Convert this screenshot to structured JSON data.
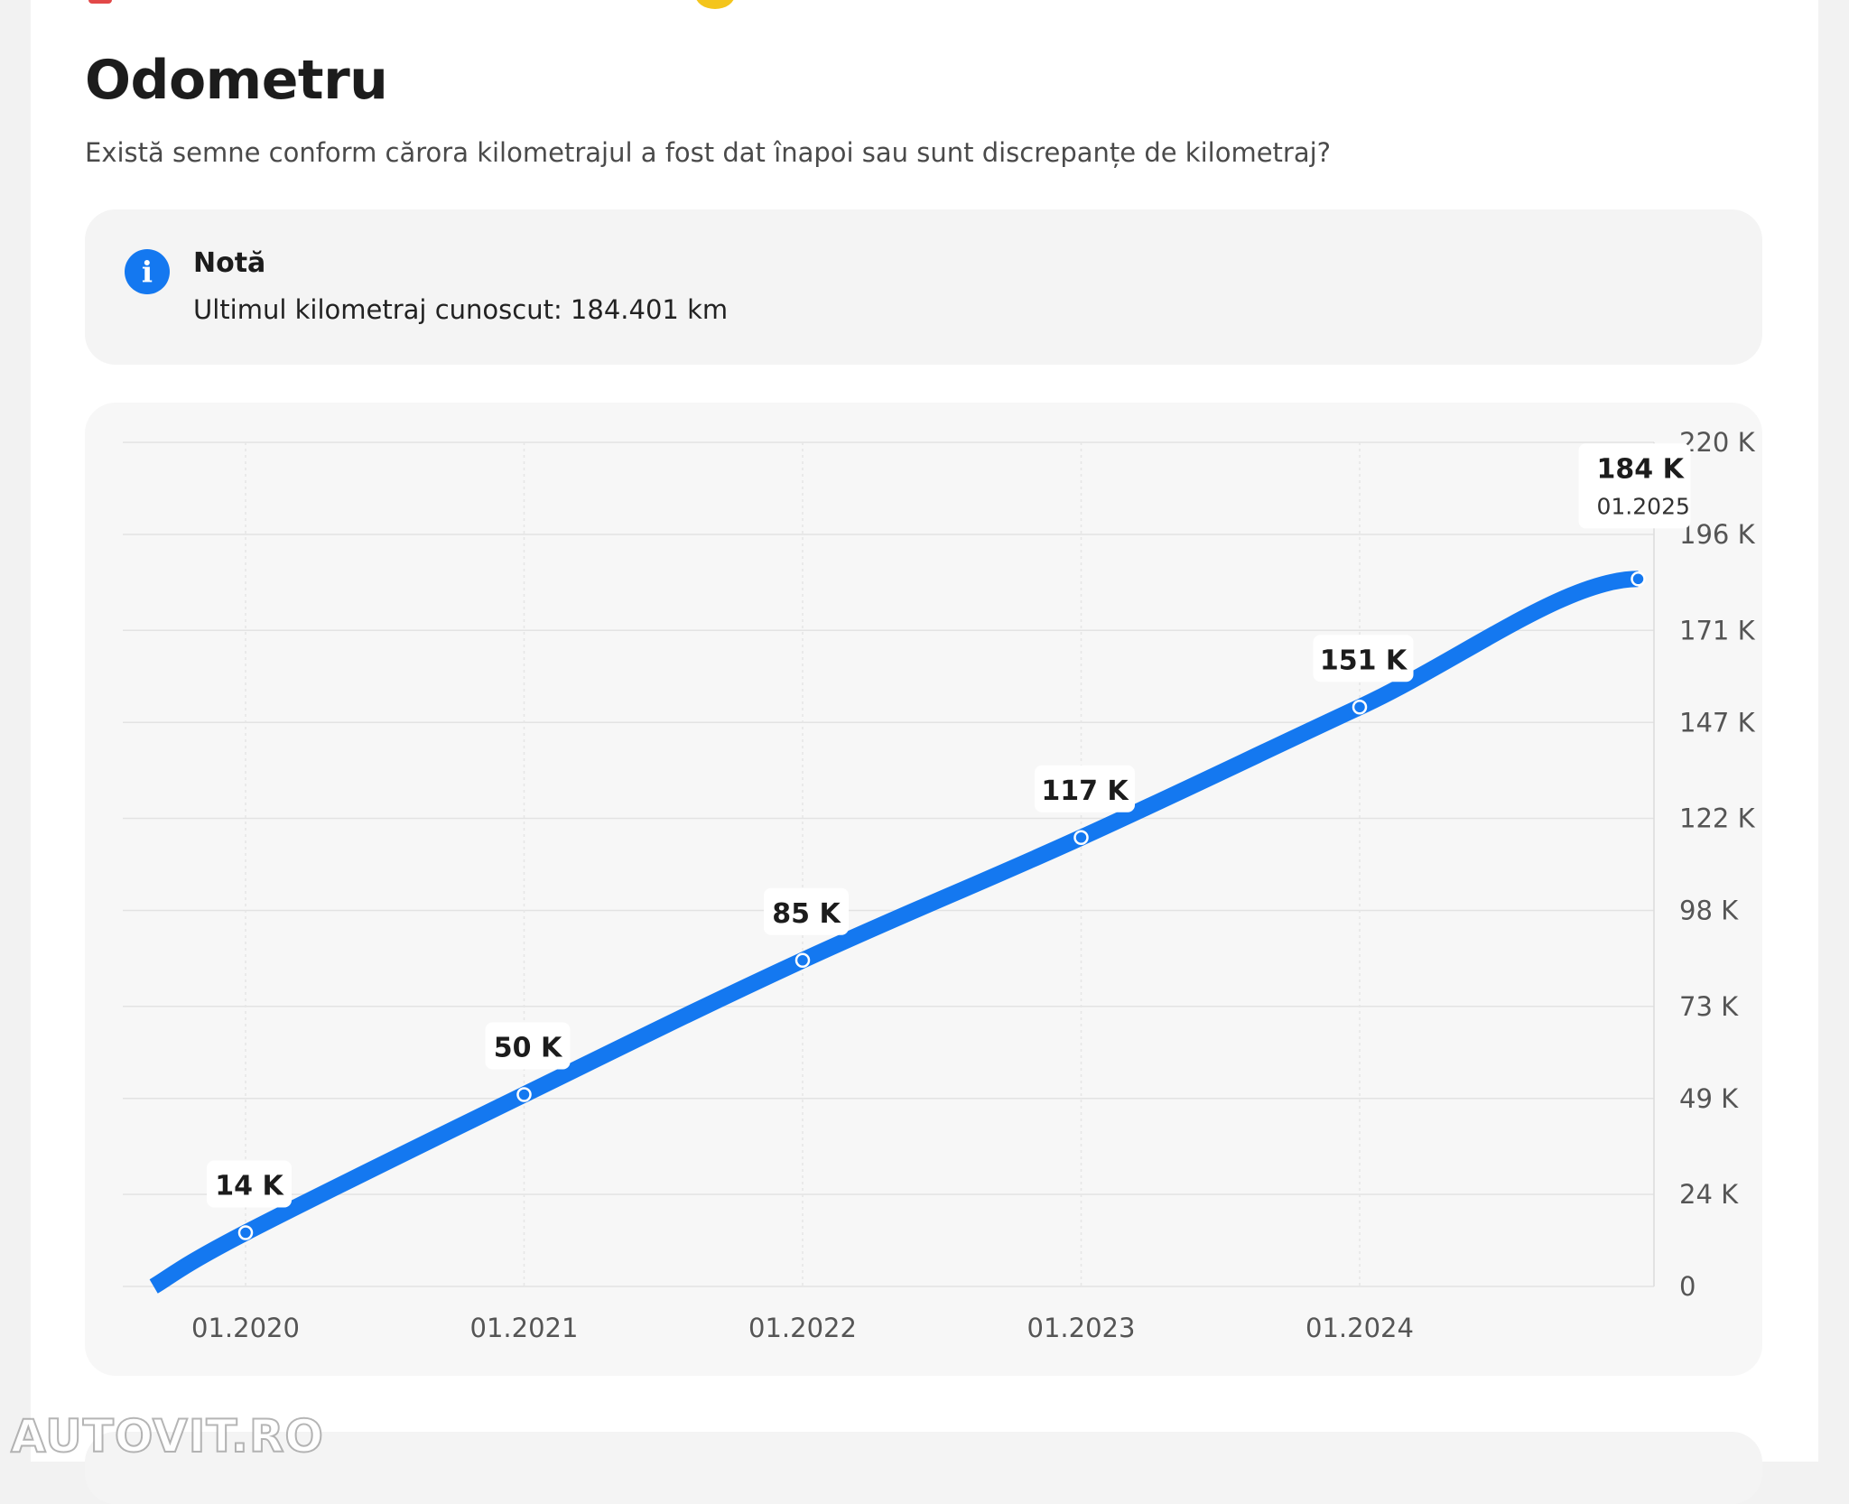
{
  "header": {
    "title": "Odometru",
    "subtitle": "Există semne conform cărora kilometrajul a fost dat înapoi sau sunt discrepanțe de kilometraj?"
  },
  "note": {
    "icon": "info-icon",
    "title": "Notă",
    "text": "Ultimul kilometraj cunoscut: 184.401 km",
    "accent": "#1478f0"
  },
  "watermark": "AUTOVIT.RO",
  "chart_data": {
    "type": "line",
    "title": "",
    "xlabel": "",
    "ylabel": "",
    "line_color": "#1478f0",
    "grid": true,
    "y_axis_position": "right",
    "ylim": [
      0,
      220
    ],
    "y_ticks": [
      {
        "value": 0,
        "label": "0"
      },
      {
        "value": 24,
        "label": "24 K"
      },
      {
        "value": 49,
        "label": "49 K"
      },
      {
        "value": 73,
        "label": "73 K"
      },
      {
        "value": 98,
        "label": "98 K"
      },
      {
        "value": 122,
        "label": "122 K"
      },
      {
        "value": 147,
        "label": "147 K"
      },
      {
        "value": 171,
        "label": "171 K"
      },
      {
        "value": 196,
        "label": "196 K"
      },
      {
        "value": 220,
        "label": "220 K"
      }
    ],
    "x_ticks": [
      "01.2020",
      "01.2021",
      "01.2022",
      "01.2023",
      "01.2024"
    ],
    "xlim": [
      "2019.67",
      "2025.05"
    ],
    "line_start": {
      "x": "2019.67",
      "y": 0
    },
    "points": [
      {
        "x": "01.2020",
        "y": 14,
        "label": "14 K"
      },
      {
        "x": "01.2021",
        "y": 50,
        "label": "50 K"
      },
      {
        "x": "01.2022",
        "y": 85,
        "label": "85 K"
      },
      {
        "x": "01.2023",
        "y": 117,
        "label": "117 K"
      },
      {
        "x": "01.2024",
        "y": 151,
        "label": "151 K"
      },
      {
        "x": "01.2025",
        "y": 184.4,
        "label": "184 K",
        "date_label": "01.2025"
      }
    ]
  }
}
